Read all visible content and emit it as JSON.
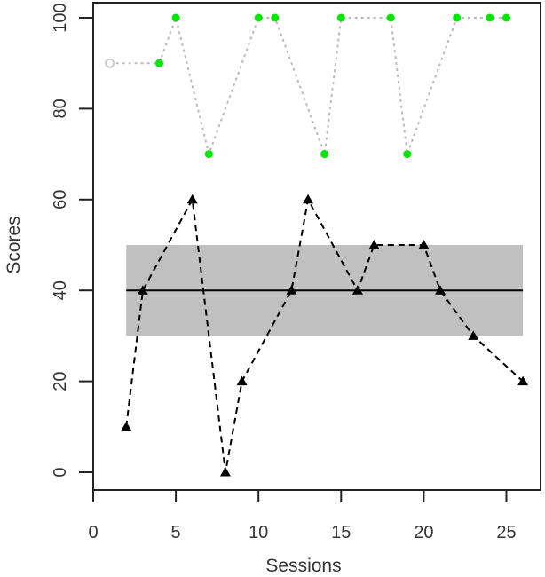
{
  "chart_data": {
    "type": "line",
    "title": "",
    "xlabel": "Sessions",
    "ylabel": "Scores",
    "xlim": [
      0,
      27
    ],
    "ylim": [
      -4,
      104
    ],
    "x_ticks": [
      0,
      5,
      10,
      15,
      20,
      25
    ],
    "y_ticks": [
      0,
      20,
      40,
      60,
      80,
      100
    ],
    "grid": false,
    "legend": null,
    "series": [
      {
        "name": "green-dotted-series",
        "style": "dotted",
        "line_color": "#bbbbbb",
        "marker": "circle",
        "marker_color": "#00e600",
        "first_point_marker": "hollow-circle",
        "first_point_color": "#cccccc",
        "x": [
          1,
          4,
          5,
          7,
          10,
          11,
          14,
          15,
          18,
          19,
          22,
          24,
          25
        ],
        "y": [
          90,
          90,
          100,
          70,
          100,
          100,
          70,
          100,
          100,
          70,
          100,
          100,
          100
        ]
      },
      {
        "name": "black-dashed-series",
        "style": "dashed",
        "line_color": "#000000",
        "marker": "triangle",
        "marker_color": "#000000",
        "x": [
          2,
          3,
          6,
          8,
          9,
          12,
          13,
          16,
          17,
          20,
          21,
          23,
          26
        ],
        "y": [
          10,
          40,
          60,
          0,
          20,
          40,
          60,
          40,
          50,
          50,
          40,
          30,
          20
        ]
      }
    ],
    "reference_band": {
      "x_start": 2,
      "x_end": 26,
      "y_low": 30,
      "y_high": 50,
      "color": "#c0c0c0"
    },
    "reference_line": {
      "x_start": 2,
      "x_end": 26,
      "y": 40,
      "color": "#000000"
    }
  }
}
